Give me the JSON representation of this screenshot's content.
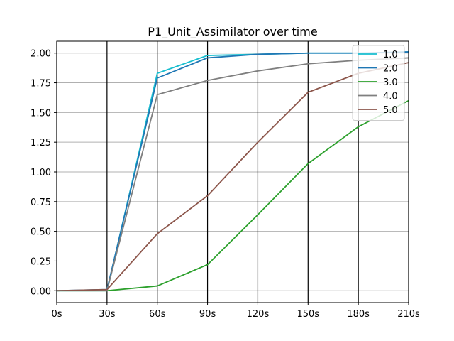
{
  "chart_data": {
    "type": "line",
    "title": "P1_Unit_Assimilator over time",
    "xlabel": "",
    "ylabel": "",
    "x": [
      "0s",
      "30s",
      "60s",
      "90s",
      "120s",
      "150s",
      "180s",
      "210s"
    ],
    "x_values": [
      0,
      30,
      60,
      90,
      120,
      150,
      180,
      210
    ],
    "xlim": [
      0,
      210
    ],
    "ylim": [
      -0.1,
      2.1
    ],
    "y_ticks": [
      0.0,
      0.25,
      0.5,
      0.75,
      1.0,
      1.25,
      1.5,
      1.75,
      2.0
    ],
    "y_tick_labels": [
      "0.00",
      "0.25",
      "0.50",
      "0.75",
      "1.00",
      "1.25",
      "1.50",
      "1.75",
      "2.00"
    ],
    "grid": {
      "horizontal": true,
      "vertical_lines_color": "#000000",
      "horizontal_color": "#b0b0b0"
    },
    "legend_position": "top-right",
    "series": [
      {
        "name": "1.0",
        "color": "#17becf",
        "values": [
          0.0,
          0.0,
          1.83,
          1.98,
          1.99,
          2.0,
          2.0,
          2.01
        ]
      },
      {
        "name": "2.0",
        "color": "#1f77b4",
        "values": [
          0.0,
          0.01,
          1.79,
          1.96,
          1.99,
          2.0,
          2.0,
          2.01
        ]
      },
      {
        "name": "3.0",
        "color": "#2ca02c",
        "values": [
          0.0,
          0.0,
          0.04,
          0.22,
          0.64,
          1.07,
          1.38,
          1.6
        ]
      },
      {
        "name": "4.0",
        "color": "#7f7f7f",
        "values": [
          0.0,
          0.0,
          1.65,
          1.77,
          1.85,
          1.91,
          1.94,
          1.96
        ]
      },
      {
        "name": "5.0",
        "color": "#8c564b",
        "values": [
          0.0,
          0.01,
          0.48,
          0.8,
          1.25,
          1.67,
          1.83,
          1.92
        ]
      }
    ]
  }
}
